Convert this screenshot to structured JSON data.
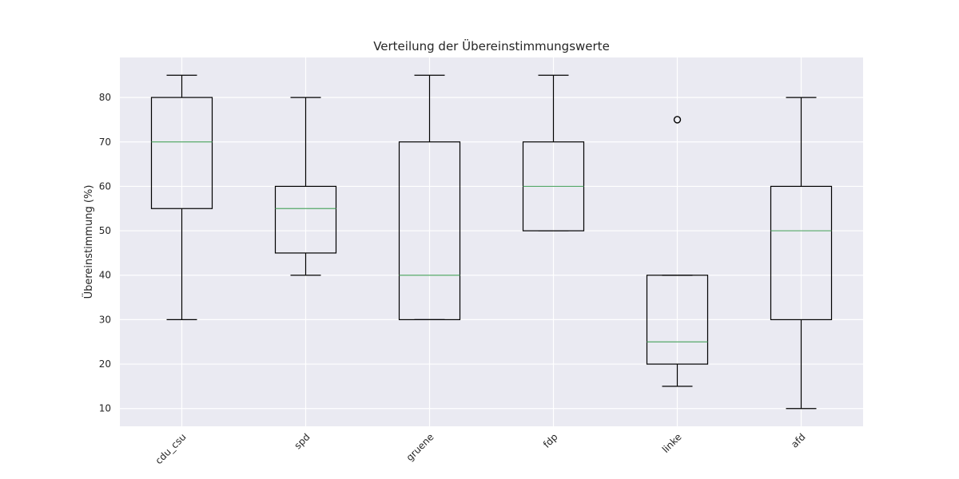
{
  "chart_data": {
    "type": "boxplot",
    "title": "Verteilung der Übereinstimmungswerte",
    "xlabel": "",
    "ylabel": "Übereinstimmung (%)",
    "ylim": [
      6,
      89
    ],
    "yticks": [
      10,
      20,
      30,
      40,
      50,
      60,
      70,
      80
    ],
    "grid": true,
    "categories": [
      "cdu_csu",
      "spd",
      "gruene",
      "fdp",
      "linke",
      "afd"
    ],
    "boxes": [
      {
        "name": "cdu_csu",
        "whisker_low": 30,
        "q1": 55,
        "median": 70,
        "q3": 80,
        "whisker_high": 85,
        "fliers": []
      },
      {
        "name": "spd",
        "whisker_low": 40,
        "q1": 45,
        "median": 55,
        "q3": 60,
        "whisker_high": 80,
        "fliers": []
      },
      {
        "name": "gruene",
        "whisker_low": 30,
        "q1": 30,
        "median": 40,
        "q3": 70,
        "whisker_high": 85,
        "fliers": []
      },
      {
        "name": "fdp",
        "whisker_low": 50,
        "q1": 50,
        "median": 60,
        "q3": 70,
        "whisker_high": 85,
        "fliers": []
      },
      {
        "name": "linke",
        "whisker_low": 15,
        "q1": 20,
        "median": 25,
        "q3": 40,
        "whisker_high": 40,
        "fliers": [
          75
        ]
      },
      {
        "name": "afd",
        "whisker_low": 10,
        "q1": 30,
        "median": 50,
        "q3": 60,
        "whisker_high": 80,
        "fliers": []
      }
    ],
    "colors": {
      "background": "#eaeaf2",
      "grid": "#ffffff",
      "box": "#000000",
      "median": "#55a868"
    }
  }
}
